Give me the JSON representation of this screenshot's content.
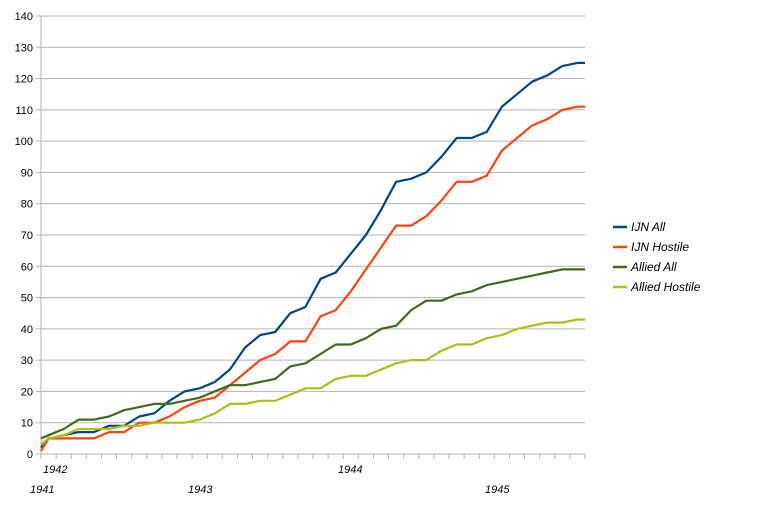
{
  "chart_data": {
    "type": "line",
    "title": "",
    "xlabel": "",
    "ylabel": "",
    "ylim": [
      0,
      140
    ],
    "yticks": [
      0,
      10,
      20,
      30,
      40,
      50,
      60,
      70,
      80,
      90,
      100,
      110,
      120,
      130,
      140
    ],
    "grid": "horizontal",
    "legend": "right",
    "x": [
      1941.95,
      1942.0,
      1942.1,
      1942.2,
      1942.3,
      1942.4,
      1942.5,
      1942.6,
      1942.7,
      1942.8,
      1942.9,
      1943.0,
      1943.1,
      1943.2,
      1943.3,
      1943.4,
      1943.5,
      1943.6,
      1943.7,
      1943.8,
      1943.9,
      1944.0,
      1944.1,
      1944.2,
      1944.3,
      1944.4,
      1944.5,
      1944.6,
      1944.7,
      1944.8,
      1944.9,
      1945.0,
      1945.1,
      1945.2,
      1945.3,
      1945.4,
      1945.5,
      1945.55
    ],
    "x_labels": [
      {
        "text": "1942",
        "row": 1
      },
      {
        "text": "1944",
        "row": 1
      },
      {
        "text": "1941",
        "row": 2
      },
      {
        "text": "1943",
        "row": 2
      },
      {
        "text": "1945",
        "row": 2
      }
    ],
    "series": [
      {
        "name": "IJN All",
        "color": "#004586",
        "values": [
          2,
          5,
          6,
          7,
          7,
          9,
          9,
          12,
          13,
          17,
          20,
          21,
          23,
          27,
          34,
          38,
          39,
          45,
          47,
          56,
          58,
          64,
          70,
          78,
          87,
          88,
          90,
          95,
          101,
          101,
          103,
          111,
          115,
          119,
          121,
          124,
          125,
          125
        ]
      },
      {
        "name": "IJN Hostile",
        "color": "#ff420e",
        "values": [
          1,
          5,
          5,
          5,
          5,
          7,
          7,
          10,
          10,
          12,
          15,
          17,
          18,
          22,
          26,
          30,
          32,
          36,
          36,
          44,
          46,
          52,
          59,
          66,
          73,
          73,
          76,
          81,
          87,
          87,
          89,
          97,
          101,
          105,
          107,
          110,
          111,
          111
        ]
      },
      {
        "name": "Allied All",
        "color": "#3f6a1b",
        "values": [
          5,
          6,
          8,
          11,
          11,
          12,
          14,
          15,
          16,
          16,
          17,
          18,
          20,
          22,
          22,
          23,
          24,
          28,
          29,
          32,
          35,
          35,
          37,
          40,
          41,
          46,
          49,
          49,
          51,
          52,
          54,
          55,
          56,
          57,
          58,
          59,
          59,
          59
        ]
      },
      {
        "name": "Allied Hostile",
        "color": "#aebd1a",
        "values": [
          3,
          5,
          6,
          8,
          8,
          8,
          9,
          9,
          10,
          10,
          10,
          11,
          13,
          16,
          16,
          17,
          17,
          19,
          21,
          21,
          24,
          25,
          25,
          27,
          29,
          30,
          30,
          33,
          35,
          35,
          37,
          38,
          40,
          41,
          42,
          42,
          43,
          43
        ]
      }
    ]
  }
}
